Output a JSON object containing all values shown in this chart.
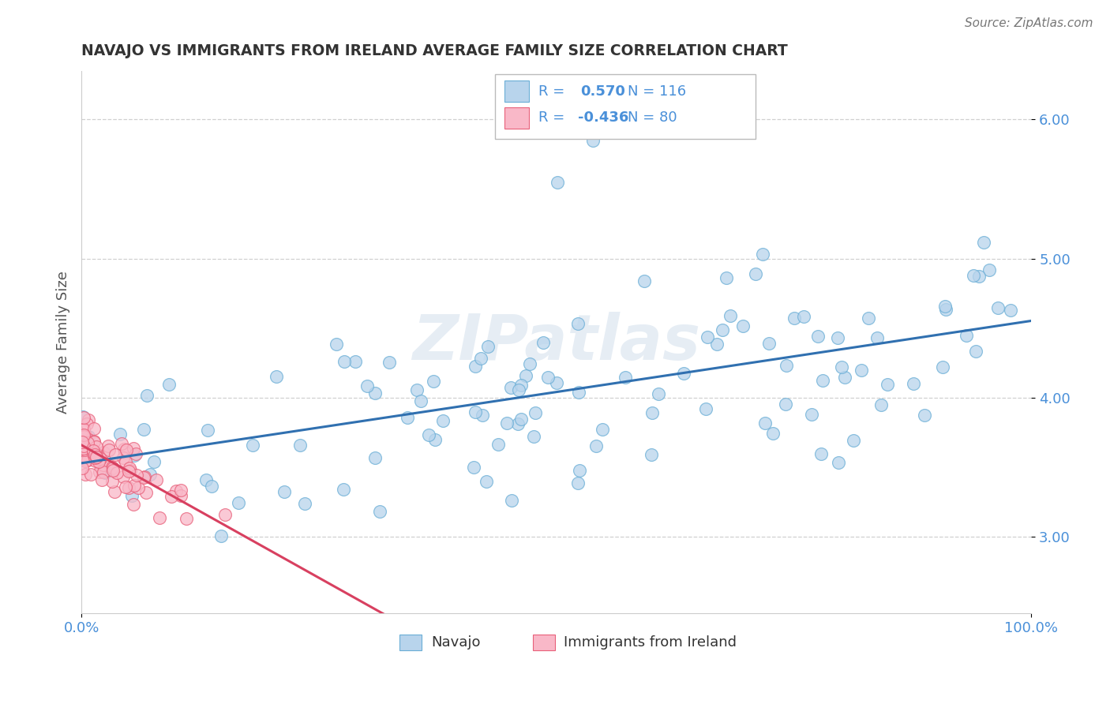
{
  "title": "NAVAJO VS IMMIGRANTS FROM IRELAND AVERAGE FAMILY SIZE CORRELATION CHART",
  "source": "Source: ZipAtlas.com",
  "ylabel": "Average Family Size",
  "xlim": [
    0,
    100
  ],
  "ylim": [
    2.45,
    6.35
  ],
  "yticks": [
    3.0,
    4.0,
    5.0,
    6.0
  ],
  "xticklabels": [
    "0.0%",
    "100.0%"
  ],
  "yticklabels": [
    "3.00",
    "4.00",
    "5.00",
    "6.00"
  ],
  "navajo_color": "#b8d4ec",
  "ireland_color": "#f9b8c8",
  "navajo_edge_color": "#6aaed6",
  "ireland_edge_color": "#e8607a",
  "navajo_line_color": "#3070b0",
  "ireland_line_color": "#d84060",
  "navajo_R": 0.57,
  "navajo_N": 116,
  "ireland_R": -0.436,
  "ireland_N": 80,
  "legend_navajo_label": "Navajo",
  "legend_ireland_label": "Immigrants from Ireland",
  "watermark": "ZIPatlas",
  "background_color": "#ffffff",
  "grid_color": "#d0d0d0",
  "title_color": "#333333",
  "axis_label_color": "#555555",
  "tick_color": "#4a90d9"
}
